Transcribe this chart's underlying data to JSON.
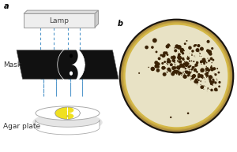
{
  "panel_a_label": "a",
  "panel_b_label": "b",
  "lamp_label": "Lamp",
  "mask_label": "Mask",
  "agar_label": "Agar plate",
  "lamp_face_color": "#eeeeee",
  "lamp_top_color": "#dddddd",
  "lamp_right_color": "#cccccc",
  "lamp_edge_color": "#999999",
  "mask_black": "#111111",
  "mask_white": "#ffffff",
  "plate_yellow": "#f0e020",
  "plate_white": "#ffffff",
  "dashed_color": "#5599cc",
  "bg_color": "#ffffff",
  "colony_color": "#3a2205",
  "agar_bg": "#e8e2c5",
  "plate_outer_dark": "#303030",
  "plate_rim_gold": "#c8aa50",
  "plate_rim_light": "#dcc870"
}
